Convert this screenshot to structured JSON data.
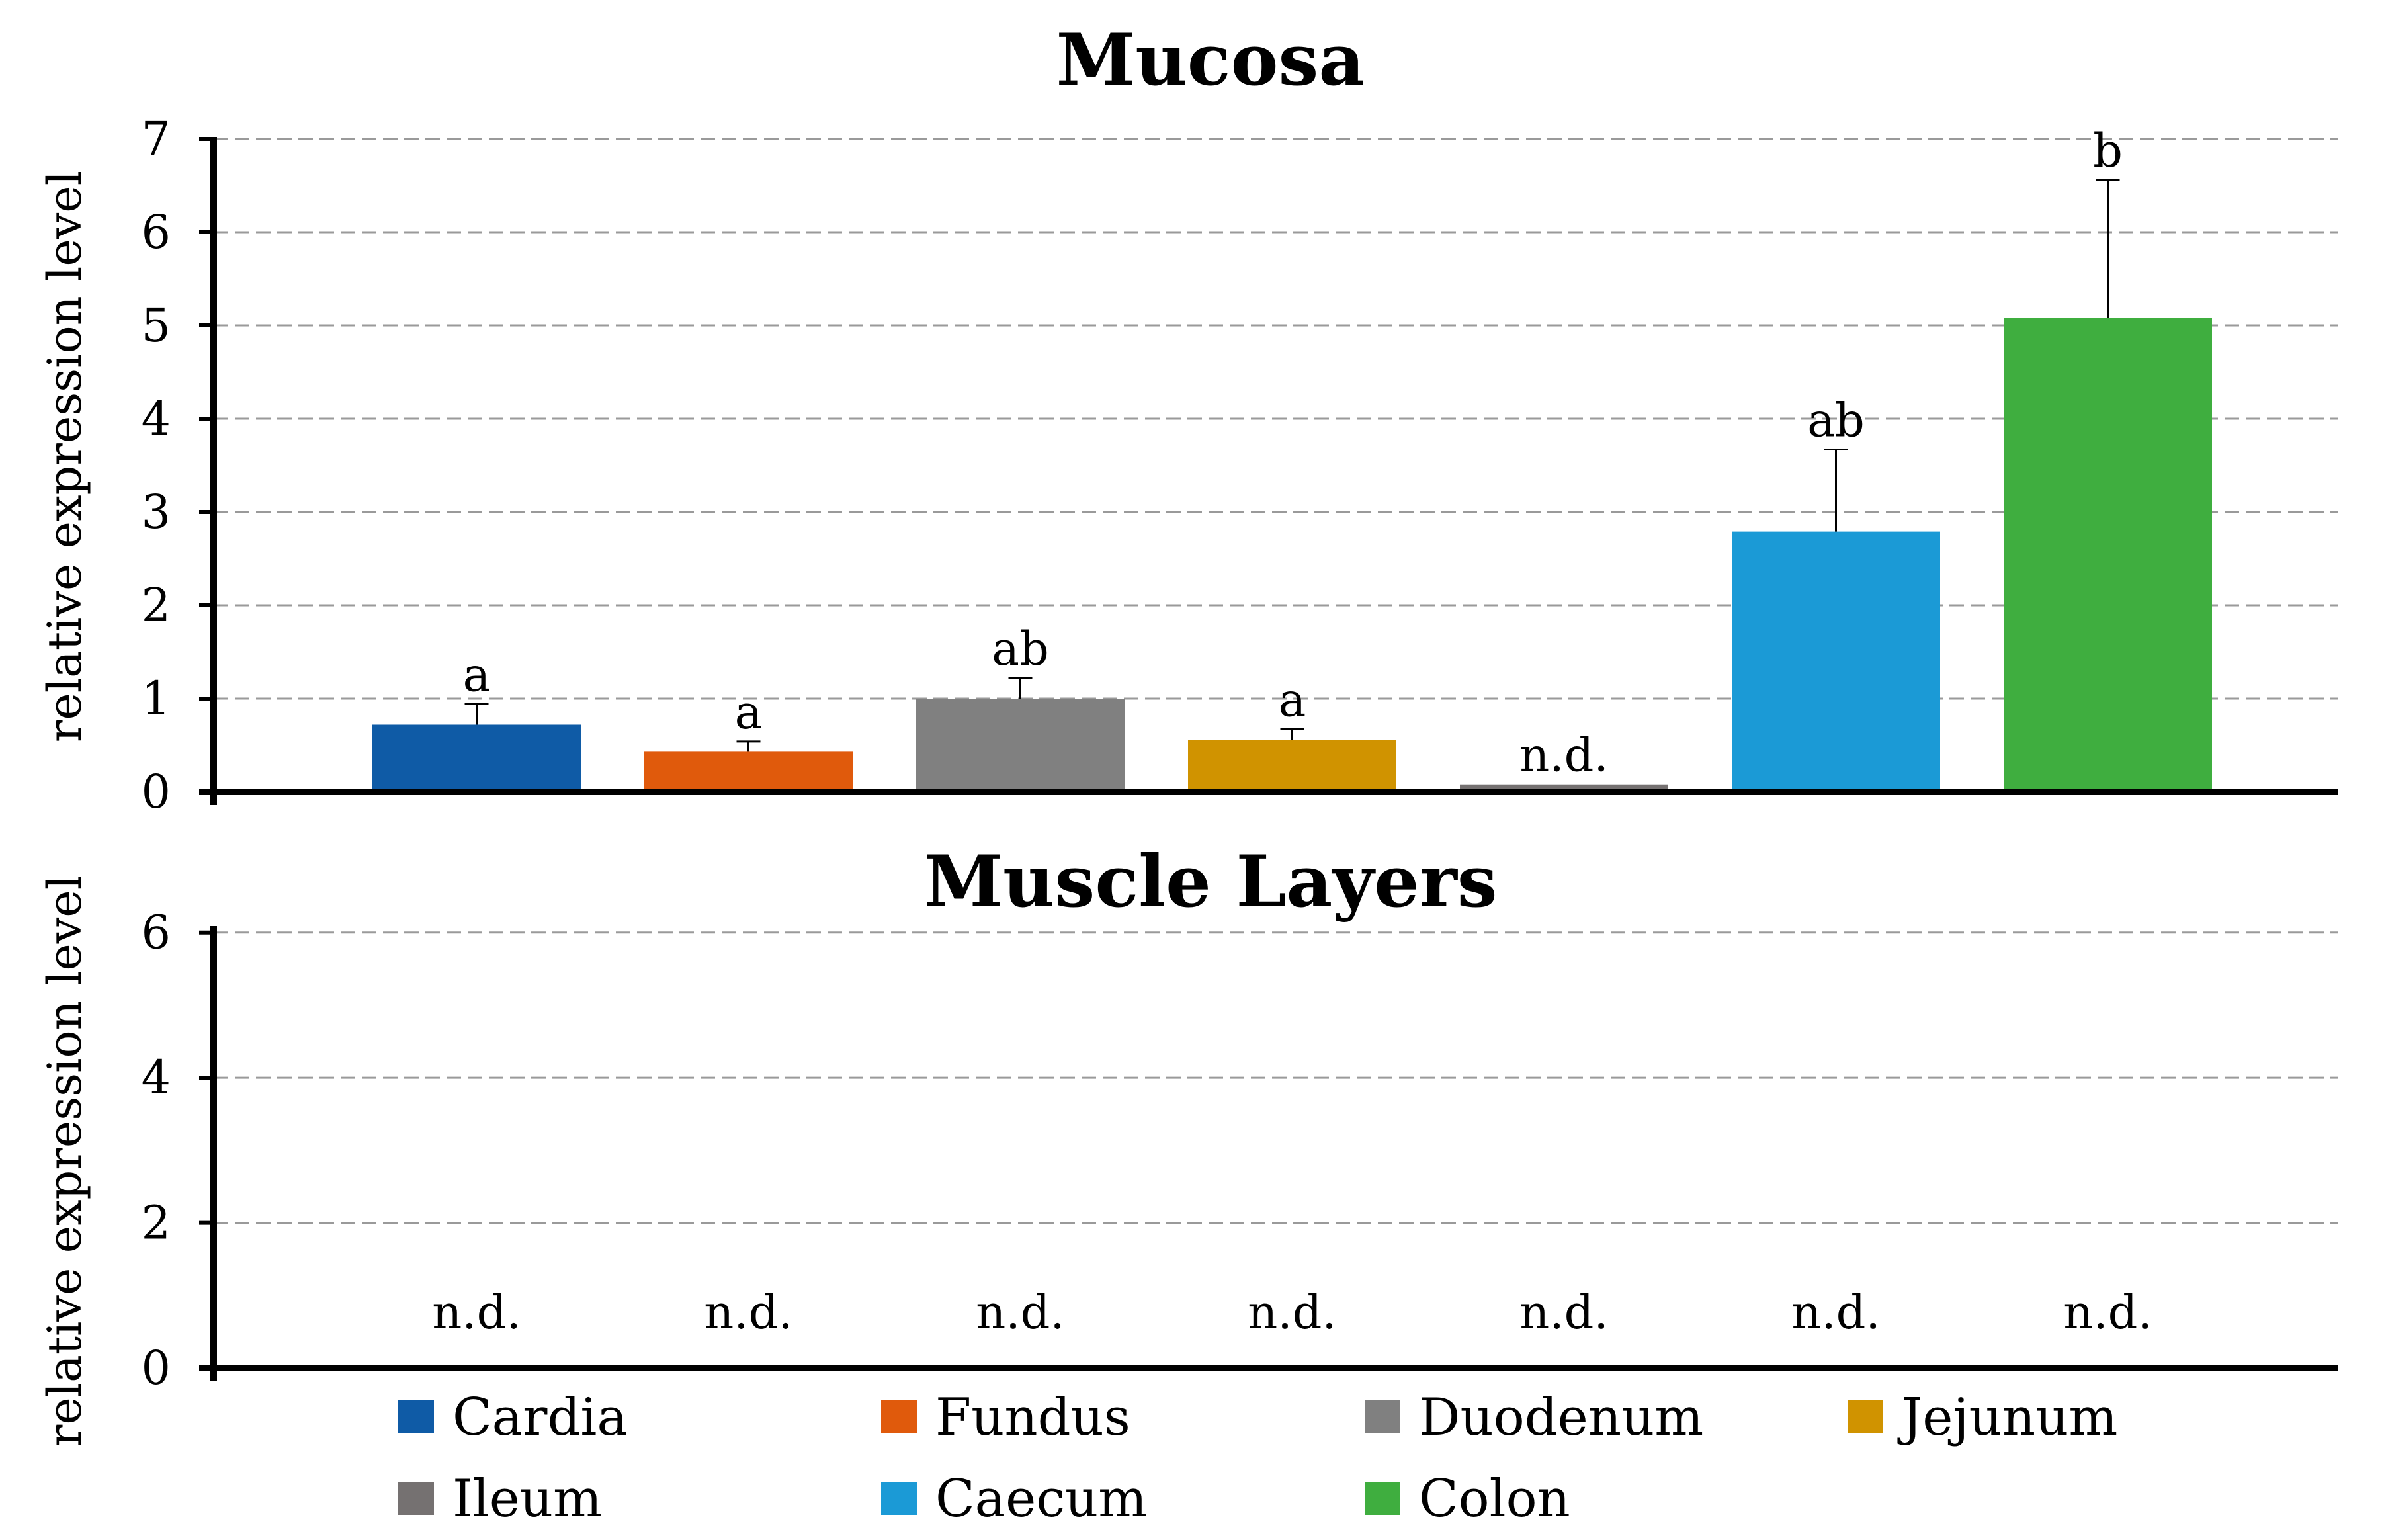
{
  "chart_data": [
    {
      "type": "bar",
      "title": "Mucosa",
      "ylabel": "relative expression level",
      "xlabel": "",
      "ylim": [
        0,
        7
      ],
      "yticks": [
        0,
        1,
        2,
        3,
        4,
        5,
        6,
        7
      ],
      "grid": true,
      "categories": [
        "Cardia",
        "Fundus",
        "Duodenum",
        "Jejunum",
        "Ileum",
        "Caecum",
        "Colon"
      ],
      "values": [
        0.72,
        0.43,
        1.0,
        0.56,
        0.08,
        2.79,
        5.08
      ],
      "errors": [
        0.22,
        0.11,
        0.22,
        0.11,
        0.0,
        0.88,
        1.48
      ],
      "labels": [
        "a",
        "a",
        "ab",
        "a",
        "n.d.",
        "ab",
        "b"
      ],
      "colors": [
        "#0f5ba6",
        "#e05a0c",
        "#808080",
        "#d09300",
        "#757171",
        "#1b9ad6",
        "#3fae3f"
      ]
    },
    {
      "type": "bar",
      "title": "Muscle Layers",
      "ylabel": "relative expression level",
      "xlabel": "",
      "ylim": [
        0,
        7
      ],
      "yticks": [
        0,
        2,
        4,
        6
      ],
      "grid": true,
      "categories": [
        "Cardia",
        "Fundus",
        "Duodenum",
        "Jejunum",
        "Ileum",
        "Caecum",
        "Colon"
      ],
      "values": [
        0.02,
        0.02,
        0.02,
        0.02,
        0.02,
        0.02,
        0.02
      ],
      "errors": [
        0.01,
        0.01,
        0.01,
        0.01,
        0.01,
        0.01,
        0.01
      ],
      "labels": [
        "n.d.",
        "n.d.",
        "n.d.",
        "n.d.",
        "n.d.",
        "n.d.",
        "n.d."
      ],
      "colors": [
        "#0f5ba6",
        "#e05a0c",
        "#808080",
        "#d09300",
        "#757171",
        "#1b9ad6",
        "#3fae3f"
      ]
    }
  ],
  "legend": {
    "placement": "bottom",
    "items": [
      {
        "label": "Cardia",
        "color": "#0f5ba6"
      },
      {
        "label": "Fundus",
        "color": "#e05a0c"
      },
      {
        "label": "Duodenum",
        "color": "#808080"
      },
      {
        "label": "Jejunum",
        "color": "#d09300"
      },
      {
        "label": "Ileum",
        "color": "#757171"
      },
      {
        "label": "Caecum",
        "color": "#1b9ad6"
      },
      {
        "label": "Colon",
        "color": "#3fae3f"
      }
    ]
  }
}
